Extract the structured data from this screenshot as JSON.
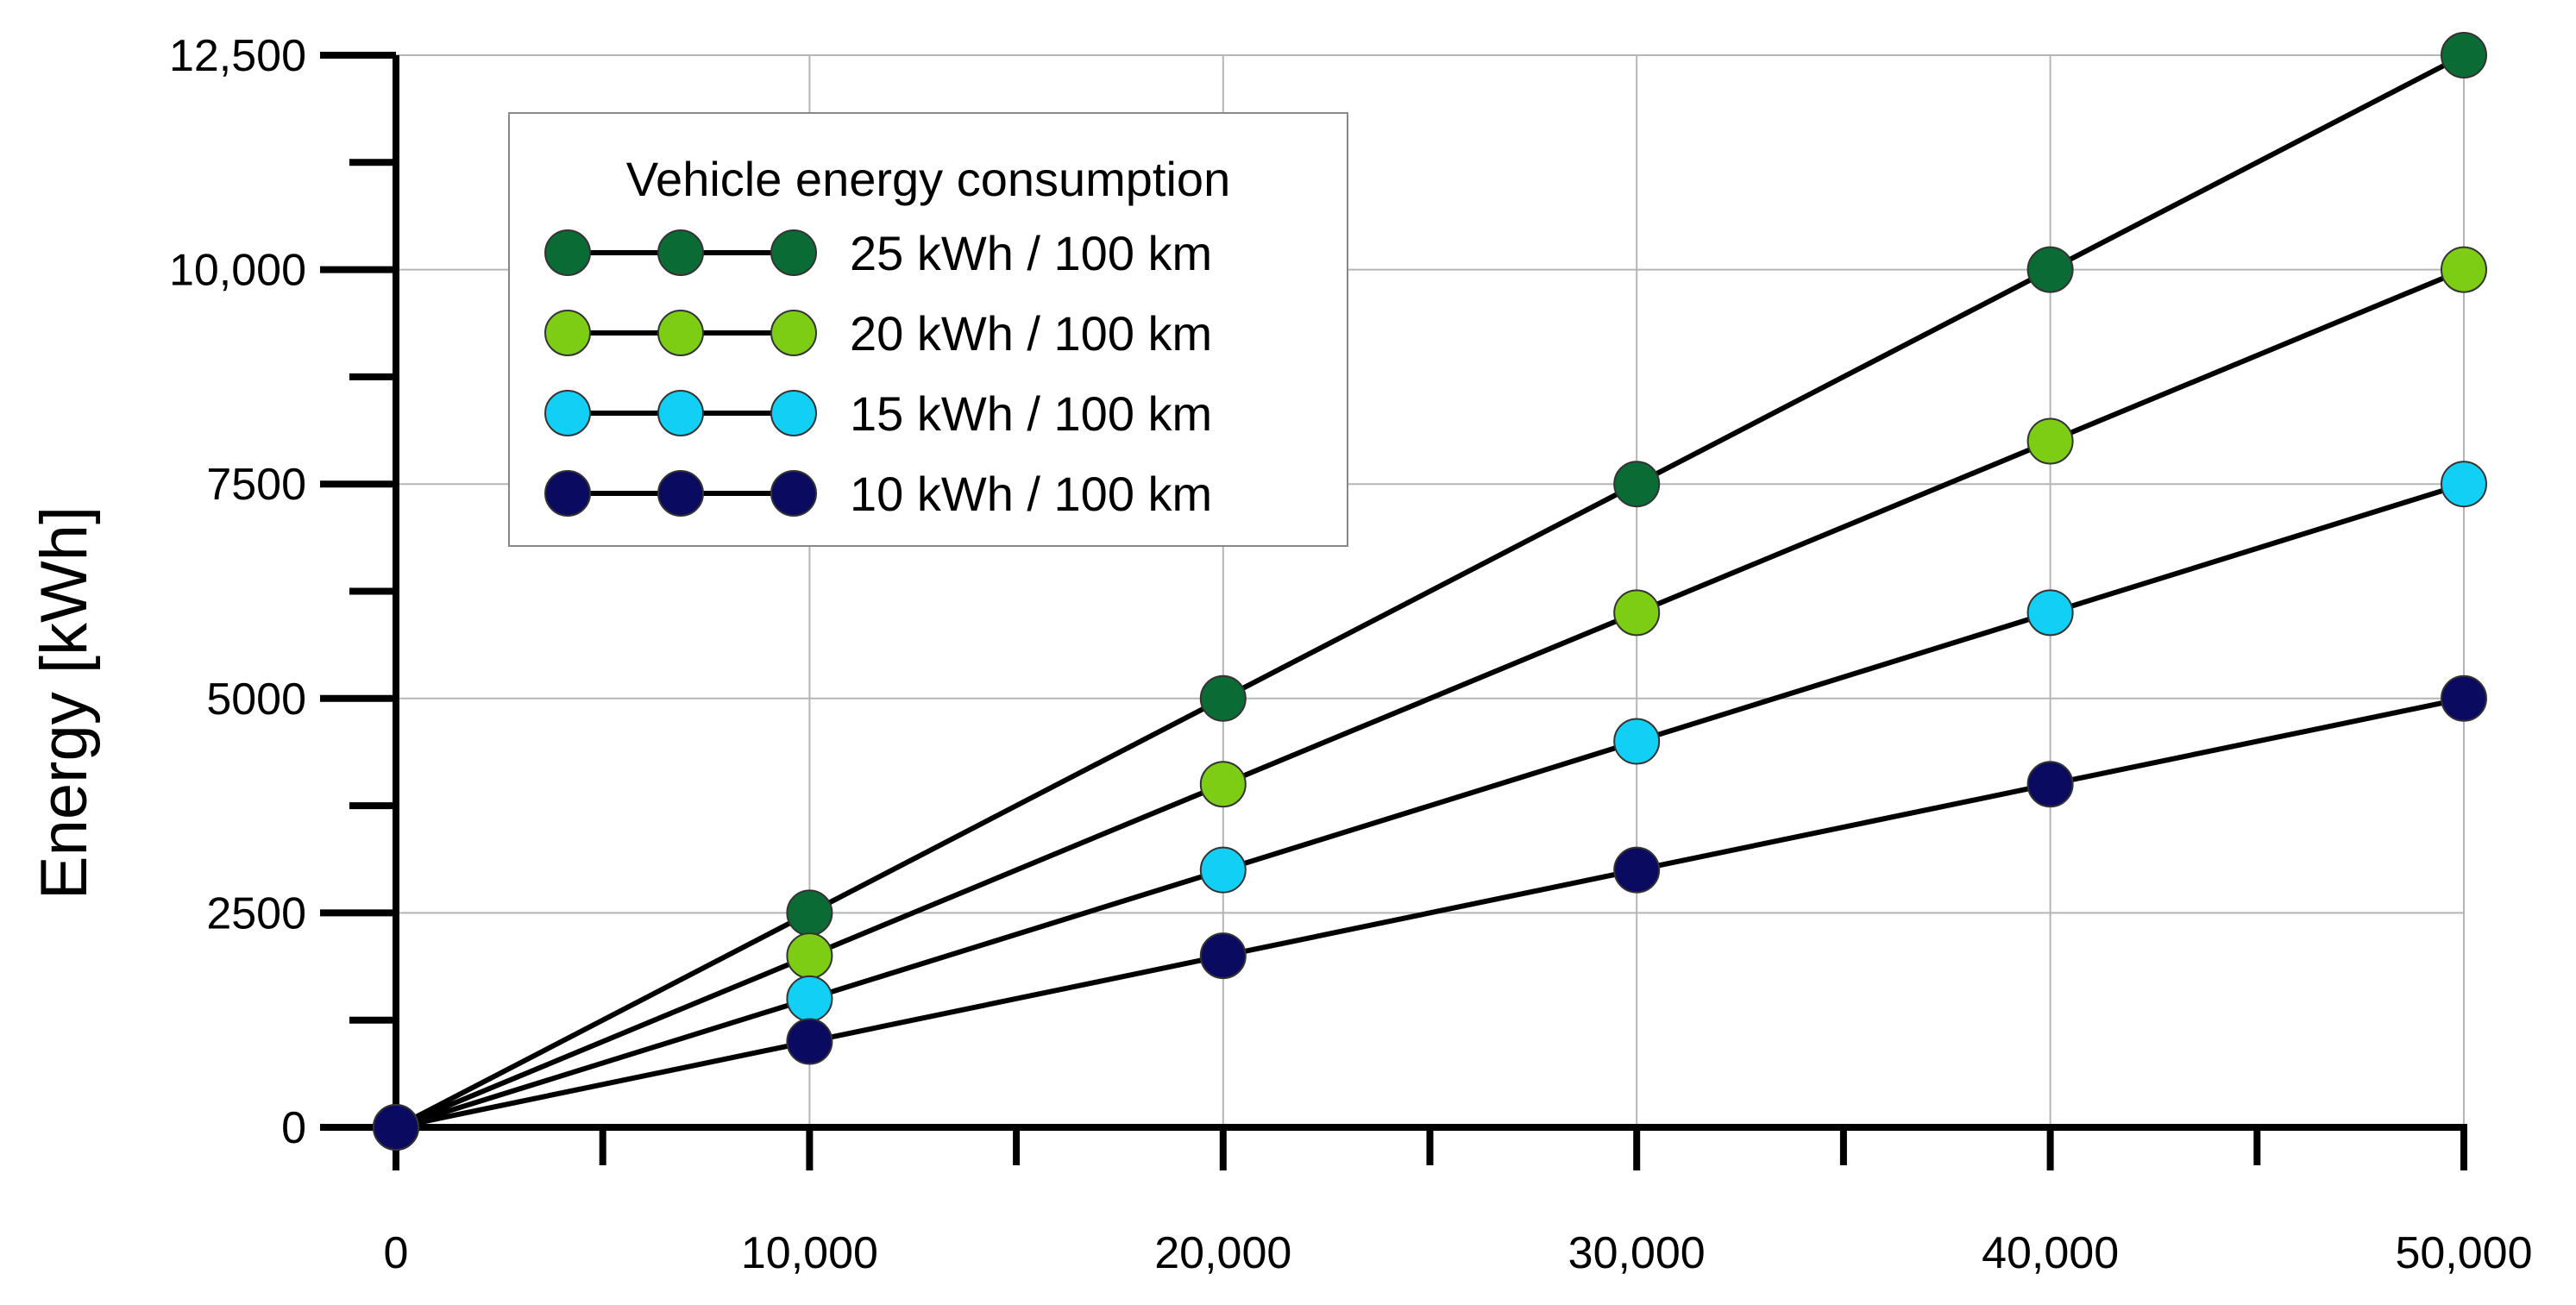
{
  "chart_data": {
    "type": "line",
    "title": "",
    "xlabel": "",
    "ylabel": "Energy [kWh]",
    "xlim": [
      0,
      50000
    ],
    "ylim": [
      0,
      12500
    ],
    "grid": true,
    "x": [
      0,
      10000,
      20000,
      30000,
      40000,
      50000
    ],
    "x_tick_labels": [
      "0",
      "10,000",
      "20,000",
      "30,000",
      "40,000",
      "50,000"
    ],
    "y_ticks": [
      0,
      2500,
      5000,
      7500,
      10000,
      12500
    ],
    "y_tick_labels": [
      "0",
      "2500",
      "5000",
      "7500",
      "10,000",
      "12,500"
    ],
    "legend": {
      "title": "Vehicle energy consumption",
      "placement": "top-left"
    },
    "series": [
      {
        "name": "25 kWh / 100 km",
        "color": "#0b6b35",
        "values": [
          0,
          2500,
          5000,
          7500,
          10000,
          12500
        ]
      },
      {
        "name": "20 kWh / 100 km",
        "color": "#7ccd14",
        "values": [
          0,
          2000,
          4000,
          6000,
          8000,
          10000
        ]
      },
      {
        "name": "15 kWh / 100 km",
        "color": "#12d0f5",
        "values": [
          0,
          1500,
          3000,
          4500,
          6000,
          7500
        ]
      },
      {
        "name": "10 kWh / 100 km",
        "color": "#0a0a60",
        "values": [
          0,
          1000,
          2000,
          3000,
          4000,
          5000
        ]
      }
    ]
  }
}
